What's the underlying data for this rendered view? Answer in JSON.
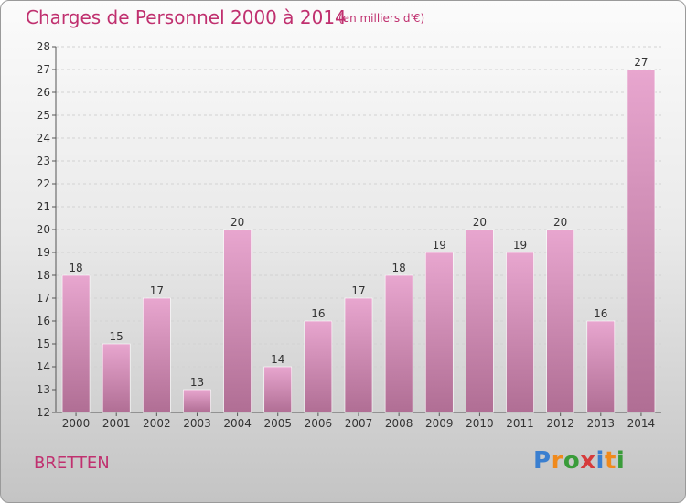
{
  "title": "Charges de Personnel 2000 à 2014",
  "subtitle": "(en milliers d'€)",
  "city": "BRETTEN",
  "logo": {
    "letters": [
      "P",
      "r",
      "o",
      "x",
      "i",
      "t",
      "i"
    ],
    "colors": [
      "#3a7fd0",
      "#f08a1c",
      "#3a9c3a",
      "#d63b3b",
      "#3a7fd0",
      "#f08a1c",
      "#3a9c3a"
    ]
  },
  "colors": {
    "bar_top": "#e8a6cf",
    "bar_bottom": "#b06e94",
    "accent": "#c0306f"
  },
  "chart_data": {
    "type": "bar",
    "categories": [
      "2000",
      "2001",
      "2002",
      "2003",
      "2004",
      "2005",
      "2006",
      "2007",
      "2008",
      "2009",
      "2010",
      "2011",
      "2012",
      "2013",
      "2014"
    ],
    "values": [
      18,
      15,
      17,
      13,
      20,
      14,
      16,
      17,
      18,
      19,
      20,
      19,
      20,
      16,
      27
    ],
    "yticks": [
      12,
      13,
      14,
      15,
      16,
      17,
      18,
      19,
      20,
      21,
      22,
      23,
      24,
      25,
      26,
      27,
      28
    ],
    "ylim": [
      12,
      28
    ],
    "title": "Charges de Personnel 2000 à 2014",
    "xlabel": "",
    "ylabel": "",
    "grid": true
  }
}
